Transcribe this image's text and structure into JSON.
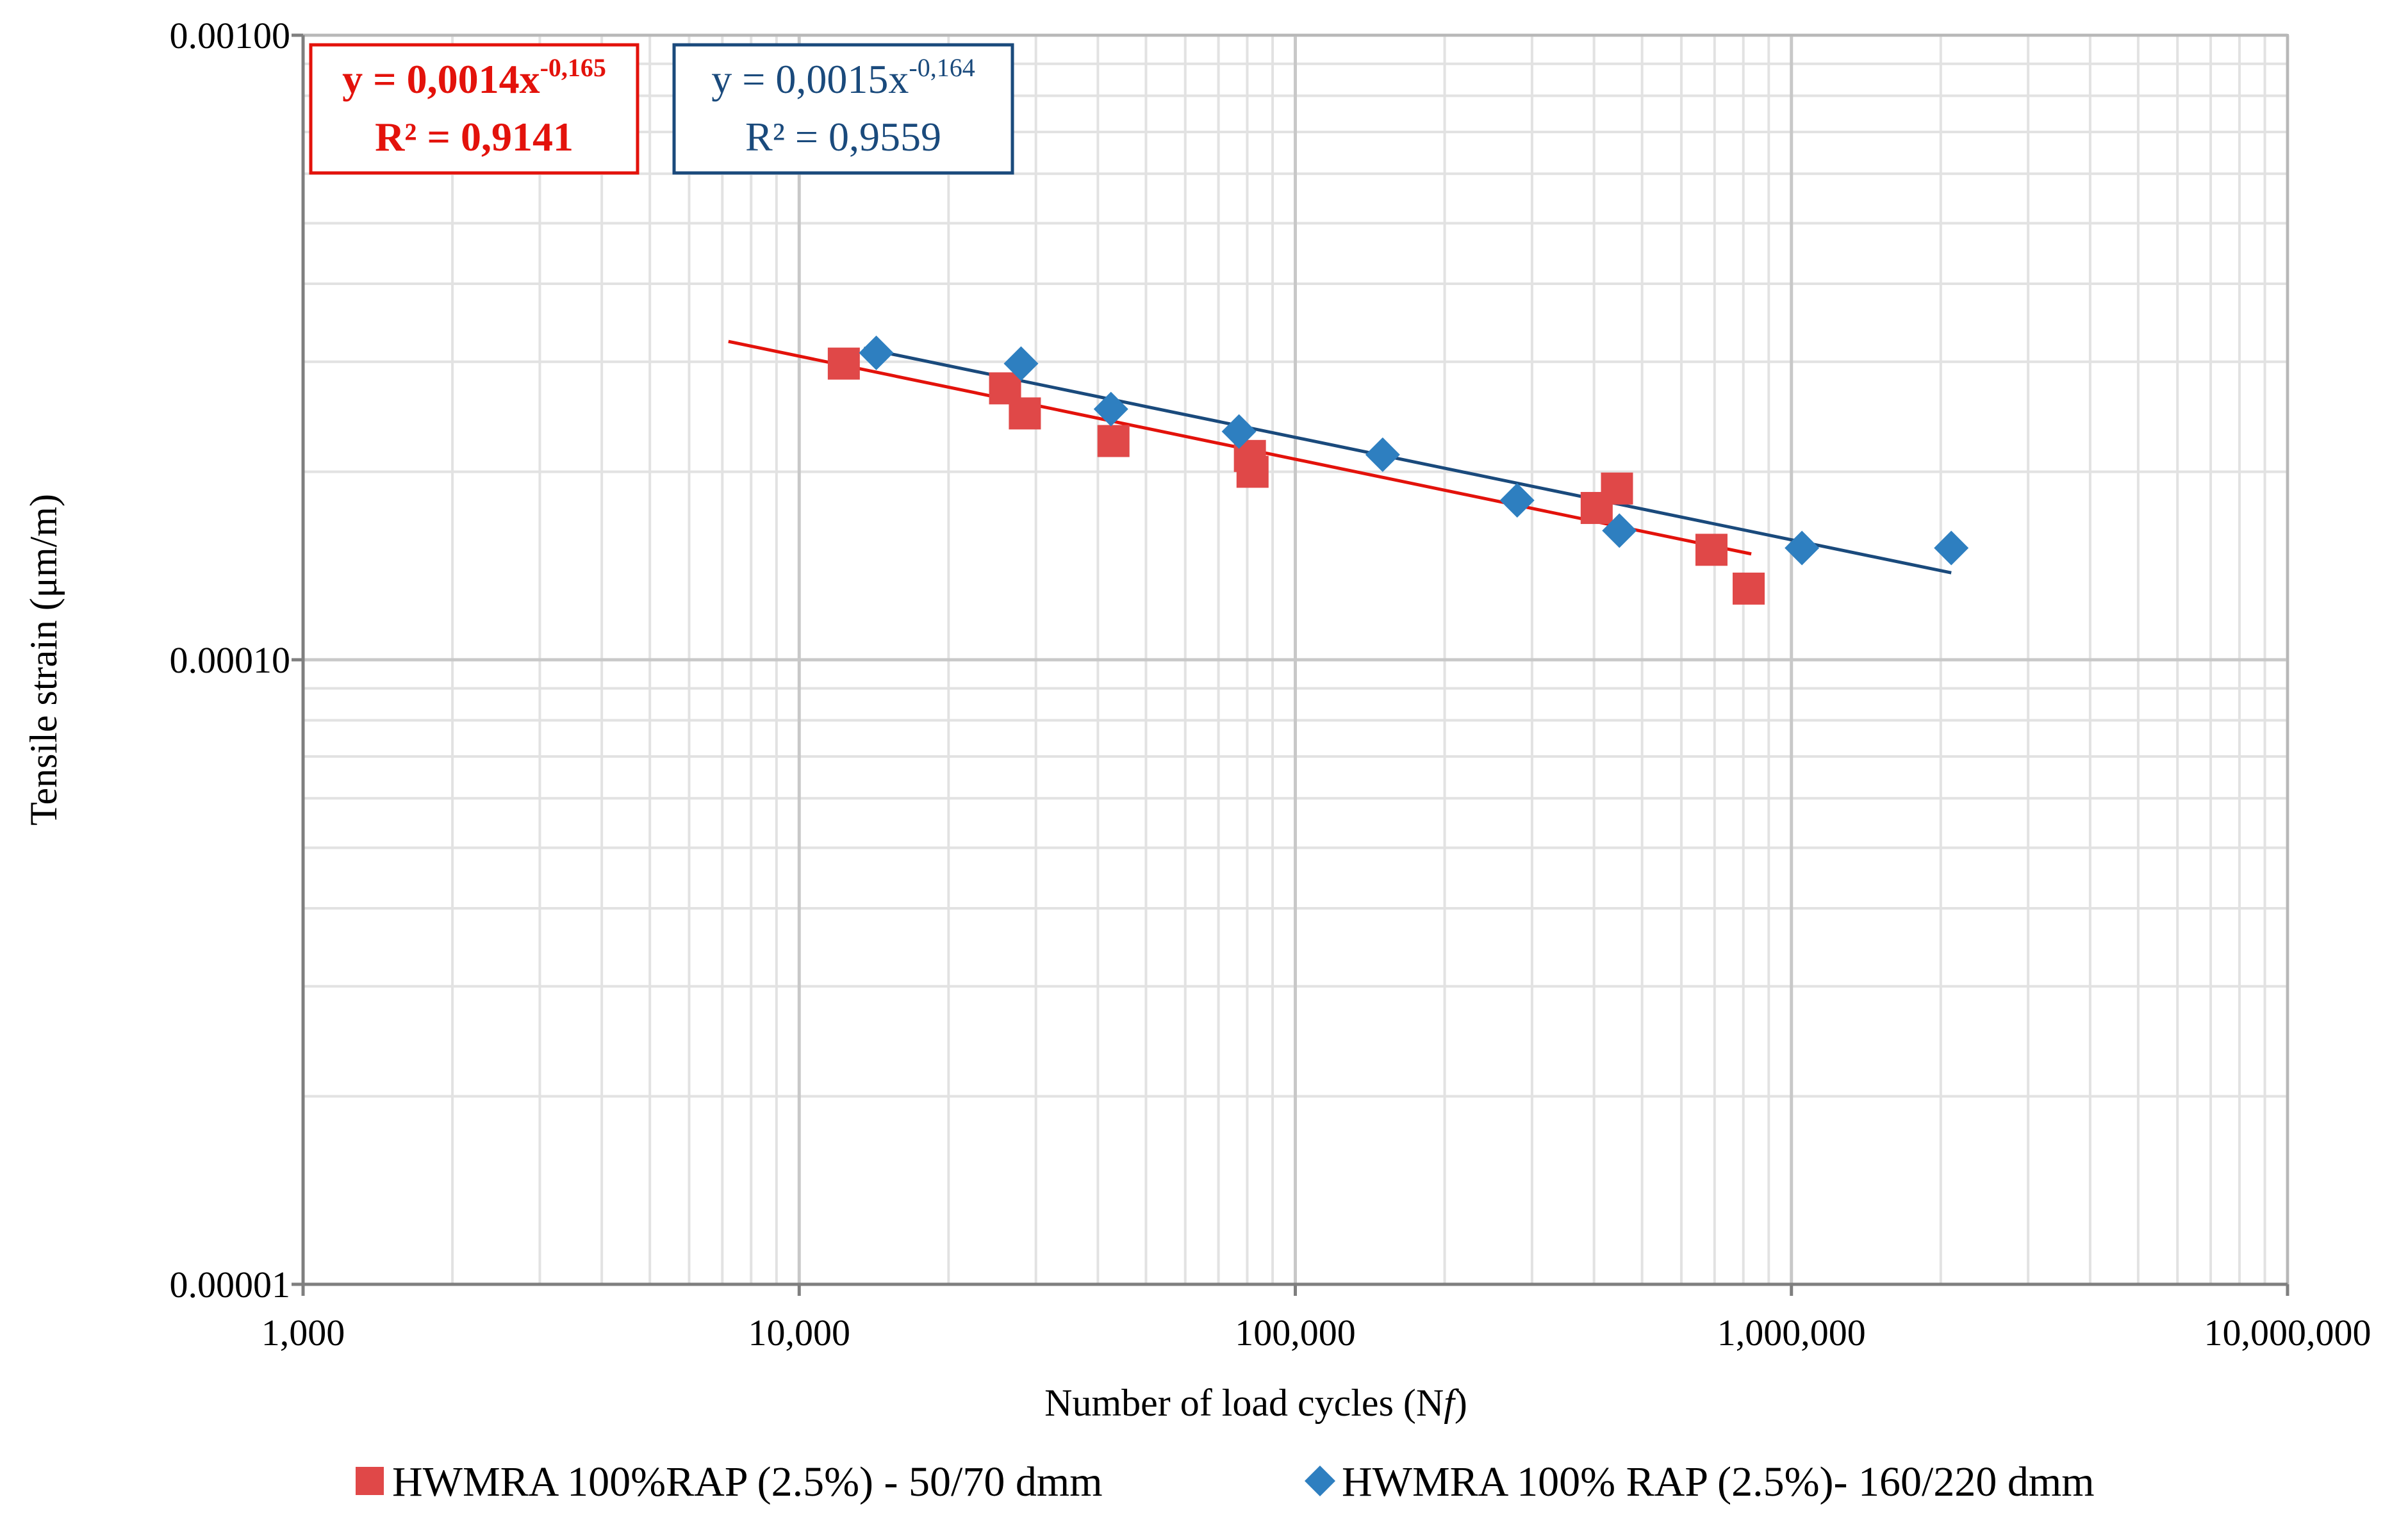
{
  "chart_data": {
    "type": "scatter",
    "title": "",
    "xlabel": "Number of load cycles (Nf)",
    "xlabel_prefix": "Number of load cycles (N",
    "xlabel_italic": "f",
    "xlabel_suffix": ")",
    "ylabel": "Tensile strain (μm/m)",
    "x_scale": "log",
    "y_scale": "log",
    "xlim": [
      1000,
      10000000
    ],
    "ylim": [
      1e-05,
      0.001
    ],
    "x_ticks": [
      1000,
      10000,
      100000,
      1000000,
      10000000
    ],
    "x_tick_labels": [
      "1,000",
      "10,000",
      "100,000",
      "1,000,000",
      "10,000,000"
    ],
    "y_ticks": [
      1e-05,
      0.0001,
      0.001
    ],
    "y_tick_labels": [
      "0.00001",
      "0.00010",
      "0.00100"
    ],
    "grid": true,
    "legend_position": "bottom",
    "series": [
      {
        "name": "HWMRA 100%RAP (2.5%) - 50/70 dmm",
        "marker": "square",
        "color": "#e04848",
        "trend_color": "#e3120b",
        "points": [
          {
            "x": 12300,
            "y": 0.000298
          },
          {
            "x": 26000,
            "y": 0.000272
          },
          {
            "x": 28500,
            "y": 0.000248
          },
          {
            "x": 43000,
            "y": 0.000224
          },
          {
            "x": 81000,
            "y": 0.000212
          },
          {
            "x": 82000,
            "y": 0.0002
          },
          {
            "x": 405000,
            "y": 0.000175
          },
          {
            "x": 445000,
            "y": 0.000188
          },
          {
            "x": 690000,
            "y": 0.00015
          },
          {
            "x": 820000,
            "y": 0.00013
          }
        ],
        "trendline": {
          "coefficient": 0.0014,
          "exponent": -0.165,
          "x_range": [
            7200,
            830000
          ],
          "equation_text": "y = 0,0014x",
          "exponent_text": "-0,165",
          "r2_text": "R² = 0,9141"
        }
      },
      {
        "name": "HWMRA 100% RAP (2.5%)- 160/220 dmm",
        "marker": "diamond",
        "color": "#2e7fc0",
        "trend_color": "#1a4a7c",
        "points": [
          {
            "x": 14300,
            "y": 0.00031
          },
          {
            "x": 28000,
            "y": 0.000298
          },
          {
            "x": 42500,
            "y": 0.000252
          },
          {
            "x": 77000,
            "y": 0.000232
          },
          {
            "x": 150000,
            "y": 0.000213
          },
          {
            "x": 280000,
            "y": 0.00018
          },
          {
            "x": 450000,
            "y": 0.000161
          },
          {
            "x": 1050000,
            "y": 0.000151
          },
          {
            "x": 2100000,
            "y": 0.000151
          }
        ],
        "trendline": {
          "coefficient": 0.0015,
          "exponent": -0.164,
          "x_range": [
            13500,
            2100000
          ],
          "equation_text": "y = 0,0015x",
          "exponent_text": "-0,164",
          "r2_text": "R² = 0,9559"
        }
      }
    ]
  }
}
